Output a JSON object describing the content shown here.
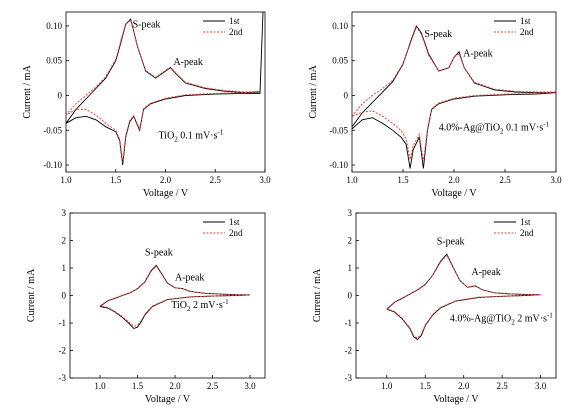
{
  "chart_data": [
    {
      "type": "line",
      "xlabel": "Voltage / V",
      "ylabel": "Current / mA",
      "xlim": [
        1.0,
        3.0
      ],
      "ylim": [
        -0.11,
        0.12
      ],
      "xticks": [
        "1.0",
        "1.5",
        "2.0",
        "2.5",
        "3.0"
      ],
      "yticks": [
        "-0.10",
        "-0.05",
        "0",
        "0.05",
        "0.10"
      ],
      "legend": [
        "1st",
        "2nd"
      ],
      "legend_position": "top-right",
      "annotation_main": "TiO",
      "annotation_sub": "2",
      "annotation_rest": " 0.1 mV·s",
      "annotation_sup": "-1",
      "peak_labels": [
        "S-peak",
        "A-peak"
      ],
      "series": [
        {
          "name": "1st",
          "color": "#000000",
          "dash": "solid",
          "x": [
            1.0,
            1.1,
            1.2,
            1.3,
            1.4,
            1.5,
            1.55,
            1.6,
            1.65,
            1.72,
            1.8,
            1.9,
            2.0,
            2.05,
            2.1,
            2.2,
            2.4,
            2.6,
            2.8,
            2.95,
            2.98,
            2.95,
            2.8,
            2.5,
            2.2,
            2.0,
            1.85,
            1.78,
            1.74,
            1.68,
            1.64,
            1.6,
            1.57,
            1.54,
            1.5,
            1.4,
            1.3,
            1.2,
            1.1,
            1.0
          ],
          "y": [
            -0.04,
            -0.02,
            -0.005,
            0.01,
            0.025,
            0.05,
            0.075,
            0.102,
            0.11,
            0.07,
            0.035,
            0.025,
            0.035,
            0.04,
            0.032,
            0.018,
            0.01,
            0.006,
            0.004,
            0.005,
            0.12,
            0.003,
            0.003,
            0.002,
            0.0,
            -0.005,
            -0.012,
            -0.02,
            -0.05,
            -0.03,
            -0.038,
            -0.06,
            -0.1,
            -0.065,
            -0.052,
            -0.045,
            -0.035,
            -0.03,
            -0.032,
            -0.04
          ]
        },
        {
          "name": "2nd",
          "color": "#e8433a",
          "dash": "dotted",
          "x": [
            1.0,
            1.1,
            1.2,
            1.3,
            1.4,
            1.5,
            1.55,
            1.6,
            1.65,
            1.72,
            1.8,
            1.9,
            2.0,
            2.05,
            2.1,
            2.2,
            2.4,
            2.6,
            2.8,
            2.95,
            2.8,
            2.5,
            2.2,
            2.0,
            1.85,
            1.78,
            1.74,
            1.68,
            1.64,
            1.6,
            1.57,
            1.54,
            1.5,
            1.4,
            1.3,
            1.2,
            1.1,
            1.0
          ],
          "y": [
            -0.028,
            -0.012,
            0.0,
            0.012,
            0.027,
            0.052,
            0.078,
            0.103,
            0.108,
            0.07,
            0.036,
            0.026,
            0.036,
            0.041,
            0.033,
            0.019,
            0.011,
            0.007,
            0.005,
            0.006,
            0.004,
            0.003,
            0.001,
            -0.004,
            -0.011,
            -0.019,
            -0.048,
            -0.029,
            -0.036,
            -0.058,
            -0.096,
            -0.063,
            -0.05,
            -0.04,
            -0.028,
            -0.02,
            -0.02,
            -0.028
          ]
        }
      ]
    },
    {
      "type": "line",
      "xlabel": "Voltage / V",
      "ylabel": "Current / mA",
      "xlim": [
        1.0,
        3.0
      ],
      "ylim": [
        -0.11,
        0.12
      ],
      "xticks": [
        "1.0",
        "1.5",
        "2.0",
        "2.5",
        "3.0"
      ],
      "yticks": [
        "-0.10",
        "-0.05",
        "0",
        "0.05",
        "0.10"
      ],
      "legend": [
        "1st",
        "2nd"
      ],
      "legend_position": "top-right",
      "annotation_main": "4.0%-Ag@TiO",
      "annotation_sub": "2",
      "annotation_rest": " 0.1 mV·s",
      "annotation_sup": "-1",
      "peak_labels": [
        "S-peak",
        "A-peak"
      ],
      "series": [
        {
          "name": "1st",
          "color": "#000000",
          "dash": "solid",
          "x": [
            1.0,
            1.1,
            1.2,
            1.3,
            1.4,
            1.5,
            1.58,
            1.63,
            1.68,
            1.75,
            1.85,
            1.95,
            2.0,
            2.05,
            2.1,
            2.2,
            2.4,
            2.6,
            2.8,
            3.0,
            2.8,
            2.5,
            2.2,
            2.0,
            1.85,
            1.78,
            1.74,
            1.7,
            1.66,
            1.6,
            1.57,
            1.53,
            1.48,
            1.4,
            1.3,
            1.2,
            1.1,
            1.0
          ],
          "y": [
            -0.045,
            -0.025,
            -0.01,
            0.005,
            0.02,
            0.045,
            0.08,
            0.1,
            0.09,
            0.06,
            0.035,
            0.04,
            0.055,
            0.063,
            0.04,
            0.018,
            0.008,
            0.005,
            0.004,
            0.004,
            0.002,
            0.001,
            -0.001,
            -0.005,
            -0.012,
            -0.02,
            -0.05,
            -0.105,
            -0.06,
            -0.078,
            -0.105,
            -0.07,
            -0.06,
            -0.05,
            -0.04,
            -0.032,
            -0.035,
            -0.048
          ]
        },
        {
          "name": "2nd",
          "color": "#e8433a",
          "dash": "dotted",
          "x": [
            1.0,
            1.1,
            1.2,
            1.3,
            1.4,
            1.5,
            1.58,
            1.63,
            1.68,
            1.75,
            1.85,
            1.95,
            2.0,
            2.05,
            2.1,
            2.2,
            2.4,
            2.6,
            2.8,
            3.0,
            2.8,
            2.5,
            2.2,
            2.0,
            1.85,
            1.78,
            1.74,
            1.7,
            1.66,
            1.6,
            1.57,
            1.53,
            1.48,
            1.4,
            1.3,
            1.2,
            1.1,
            1.0
          ],
          "y": [
            -0.03,
            -0.012,
            0.0,
            0.01,
            0.022,
            0.046,
            0.078,
            0.098,
            0.088,
            0.058,
            0.035,
            0.04,
            0.055,
            0.06,
            0.04,
            0.019,
            0.009,
            0.006,
            0.005,
            0.005,
            0.003,
            0.002,
            0.0,
            -0.004,
            -0.011,
            -0.019,
            -0.048,
            -0.095,
            -0.056,
            -0.072,
            -0.092,
            -0.062,
            -0.05,
            -0.04,
            -0.03,
            -0.022,
            -0.024,
            -0.03
          ]
        }
      ]
    },
    {
      "type": "line",
      "xlabel": "Voltage / V",
      "ylabel": "Current / mA",
      "xlim": [
        0.6,
        3.2
      ],
      "ylim": [
        -3,
        3
      ],
      "xticks": [
        "1.0",
        "1.5",
        "2.0",
        "2.5",
        "3.0"
      ],
      "yticks": [
        "-3",
        "-2",
        "-1",
        "0",
        "1",
        "2",
        "3"
      ],
      "legend": [
        "1st",
        "2nd"
      ],
      "legend_position": "top-right",
      "annotation_main": "TiO",
      "annotation_sub": "2",
      "annotation_rest": " 2 mV·s",
      "annotation_sup": "-1",
      "peak_labels": [
        "S-peak",
        "A-peak"
      ],
      "series": [
        {
          "name": "1st",
          "color": "#000000",
          "dash": "solid",
          "x": [
            1.0,
            1.1,
            1.2,
            1.3,
            1.4,
            1.5,
            1.6,
            1.68,
            1.75,
            1.82,
            1.9,
            2.0,
            2.1,
            2.2,
            2.4,
            2.6,
            2.8,
            3.0,
            2.8,
            2.5,
            2.2,
            1.9,
            1.7,
            1.6,
            1.55,
            1.5,
            1.45,
            1.4,
            1.3,
            1.2,
            1.1,
            1.0
          ],
          "y": [
            -0.4,
            -0.2,
            -0.1,
            0.0,
            0.1,
            0.25,
            0.5,
            0.9,
            1.1,
            0.8,
            0.45,
            0.28,
            0.25,
            0.15,
            0.08,
            0.05,
            0.03,
            0.02,
            0.0,
            -0.02,
            -0.05,
            -0.15,
            -0.4,
            -0.7,
            -0.95,
            -1.15,
            -1.2,
            -1.05,
            -0.8,
            -0.6,
            -0.45,
            -0.4
          ]
        },
        {
          "name": "2nd",
          "color": "#e8433a",
          "dash": "dotted",
          "x": [
            1.0,
            1.1,
            1.2,
            1.3,
            1.4,
            1.5,
            1.6,
            1.68,
            1.75,
            1.82,
            1.9,
            2.0,
            2.1,
            2.2,
            2.4,
            2.6,
            2.8,
            3.0,
            2.8,
            2.5,
            2.2,
            1.9,
            1.7,
            1.6,
            1.55,
            1.5,
            1.45,
            1.4,
            1.3,
            1.2,
            1.1,
            1.0
          ],
          "y": [
            -0.38,
            -0.19,
            -0.09,
            0.01,
            0.1,
            0.24,
            0.48,
            0.87,
            1.06,
            0.78,
            0.44,
            0.28,
            0.25,
            0.15,
            0.08,
            0.05,
            0.03,
            0.02,
            0.0,
            -0.02,
            -0.05,
            -0.14,
            -0.38,
            -0.67,
            -0.9,
            -1.08,
            -1.12,
            -1.0,
            -0.77,
            -0.58,
            -0.43,
            -0.38
          ]
        }
      ]
    },
    {
      "type": "line",
      "xlabel": "Voltage / V",
      "ylabel": "Current / mA",
      "xlim": [
        0.6,
        3.2
      ],
      "ylim": [
        -3,
        3
      ],
      "xticks": [
        "1.0",
        "1.5",
        "2.0",
        "2.5",
        "3.0"
      ],
      "yticks": [
        "-3",
        "-2",
        "-1",
        "0",
        "1",
        "2",
        "3"
      ],
      "legend": [
        "1st",
        "2nd"
      ],
      "legend_position": "top-right",
      "annotation_main": "4.0%-Ag@TiO",
      "annotation_sub": "2",
      "annotation_rest": " 2 mV·s",
      "annotation_sup": "-1",
      "peak_labels": [
        "S-peak",
        "A-peak"
      ],
      "series": [
        {
          "name": "1st",
          "color": "#000000",
          "dash": "solid",
          "x": [
            1.0,
            1.1,
            1.2,
            1.3,
            1.4,
            1.5,
            1.6,
            1.7,
            1.78,
            1.85,
            1.95,
            2.05,
            2.15,
            2.25,
            2.4,
            2.6,
            2.8,
            3.0,
            2.8,
            2.5,
            2.2,
            1.9,
            1.7,
            1.6,
            1.5,
            1.45,
            1.4,
            1.35,
            1.3,
            1.2,
            1.1,
            1.0
          ],
          "y": [
            -0.5,
            -0.25,
            -0.1,
            0.05,
            0.2,
            0.4,
            0.75,
            1.25,
            1.5,
            1.1,
            0.55,
            0.3,
            0.35,
            0.2,
            0.1,
            0.06,
            0.04,
            0.03,
            0.0,
            -0.03,
            -0.07,
            -0.2,
            -0.45,
            -0.7,
            -1.1,
            -1.45,
            -1.6,
            -1.5,
            -1.2,
            -0.85,
            -0.6,
            -0.5
          ]
        },
        {
          "name": "2nd",
          "color": "#e8433a",
          "dash": "dotted",
          "x": [
            1.0,
            1.1,
            1.2,
            1.3,
            1.4,
            1.5,
            1.6,
            1.7,
            1.78,
            1.85,
            1.95,
            2.05,
            2.15,
            2.25,
            2.4,
            2.6,
            2.8,
            3.0,
            2.8,
            2.5,
            2.2,
            1.9,
            1.7,
            1.6,
            1.5,
            1.45,
            1.4,
            1.35,
            1.3,
            1.2,
            1.1,
            1.0
          ],
          "y": [
            -0.48,
            -0.24,
            -0.09,
            0.06,
            0.21,
            0.41,
            0.74,
            1.22,
            1.46,
            1.08,
            0.55,
            0.3,
            0.34,
            0.2,
            0.1,
            0.06,
            0.04,
            0.03,
            0.0,
            -0.03,
            -0.06,
            -0.19,
            -0.43,
            -0.68,
            -1.07,
            -1.4,
            -1.55,
            -1.46,
            -1.17,
            -0.83,
            -0.58,
            -0.48
          ]
        }
      ]
    }
  ]
}
